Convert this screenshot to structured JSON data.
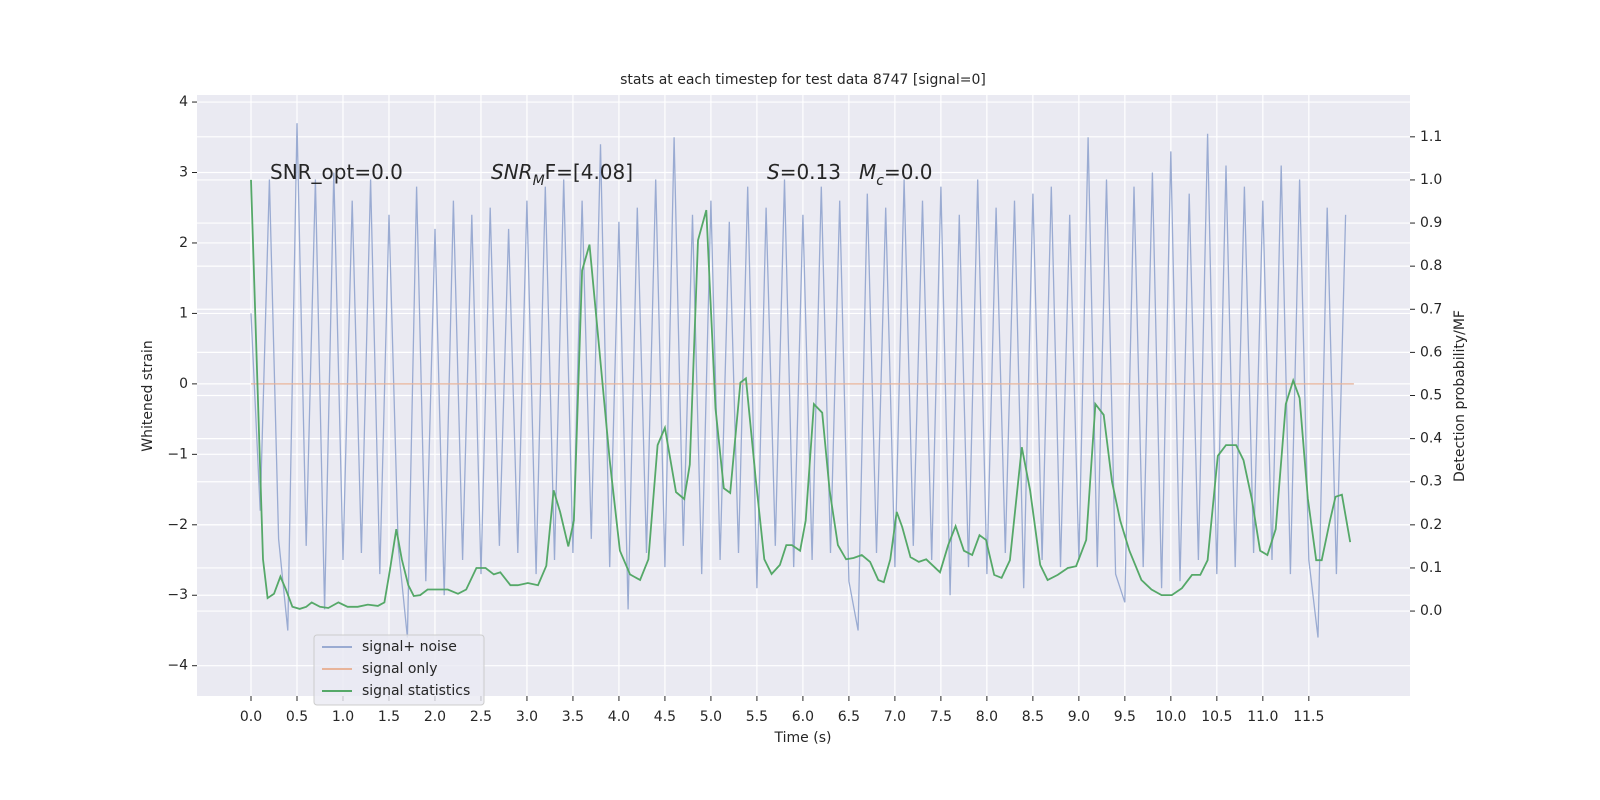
{
  "chart_data": {
    "type": "line",
    "title": "stats at each timestep for test data 8747 [signal=0]",
    "xlabel": "Time (s)",
    "ylabel": "Whitened strain",
    "y2label": "Detection probability/MF",
    "xlim": [
      -0.587,
      12.6
    ],
    "ylim": [
      -4.43,
      4.1
    ],
    "y2lim": [
      -0.197,
      1.197
    ],
    "xticks": [
      {
        "value": 0,
        "label": "0.0"
      },
      {
        "value": 0.5,
        "label": "0.5"
      },
      {
        "value": 1,
        "label": "1.0"
      },
      {
        "value": 1.5,
        "label": "1.5"
      },
      {
        "value": 2,
        "label": "2.0"
      },
      {
        "value": 2.5,
        "label": "2.5"
      },
      {
        "value": 3,
        "label": "3.0"
      },
      {
        "value": 3.5,
        "label": "3.5"
      },
      {
        "value": 4,
        "label": "4.0"
      },
      {
        "value": 4.5,
        "label": "4.5"
      },
      {
        "value": 5,
        "label": "5.0"
      },
      {
        "value": 5.5,
        "label": "5.5"
      },
      {
        "value": 6,
        "label": "6.0"
      },
      {
        "value": 6.5,
        "label": "6.5"
      },
      {
        "value": 7,
        "label": "7.0"
      },
      {
        "value": 7.5,
        "label": "7.5"
      },
      {
        "value": 8,
        "label": "8.0"
      },
      {
        "value": 8.5,
        "label": "8.5"
      },
      {
        "value": 9,
        "label": "9.0"
      },
      {
        "value": 9.5,
        "label": "9.5"
      },
      {
        "value": 10,
        "label": "10.0"
      },
      {
        "value": 10.5,
        "label": "10.5"
      },
      {
        "value": 11,
        "label": "11.0"
      },
      {
        "value": 11.5,
        "label": "11.5"
      }
    ],
    "yticks": [
      {
        "value": -4,
        "label": "−4"
      },
      {
        "value": -3,
        "label": "−3"
      },
      {
        "value": -2,
        "label": "−2"
      },
      {
        "value": -1,
        "label": "−1"
      },
      0,
      1,
      2,
      3,
      4
    ],
    "y2ticks": [
      {
        "value": 0,
        "label": "0.0"
      },
      {
        "value": 0.1,
        "label": "0.1"
      },
      {
        "value": 0.2,
        "label": "0.2"
      },
      {
        "value": 0.3,
        "label": "0.3"
      },
      {
        "value": 0.4,
        "label": "0.4"
      },
      {
        "value": 0.5,
        "label": "0.5"
      },
      {
        "value": 0.6,
        "label": "0.6"
      },
      {
        "value": 0.7,
        "label": "0.7"
      },
      {
        "value": 0.8,
        "label": "0.8"
      },
      {
        "value": 0.9,
        "label": "0.9"
      },
      {
        "value": 1,
        "label": "1.0"
      },
      {
        "value": 1.1,
        "label": "1.1"
      }
    ],
    "grid": true,
    "legend": "lower left",
    "annotations": [
      [
        "SNR_opt=0.0"
      ],
      [
        "SNR",
        "M",
        "F=[4.08]"
      ],
      [
        "S",
        "=0.13"
      ],
      [
        "M",
        "c",
        "=0.0"
      ]
    ],
    "series": [
      {
        "name": "signal+ noise",
        "color": "#9aabd2",
        "x": [
          0,
          0.1,
          0.2,
          0.3,
          0.4,
          0.5,
          0.6,
          0.7,
          0.8,
          0.9,
          1,
          1.1,
          1.2,
          1.3,
          1.4,
          1.5,
          1.6,
          1.7,
          1.8,
          1.9,
          2,
          2.1,
          2.2,
          2.3,
          2.4,
          2.5,
          2.6,
          2.7,
          2.8,
          2.9,
          3,
          3.1,
          3.2,
          3.3,
          3.4,
          3.5,
          3.6,
          3.7,
          3.8,
          3.9,
          4,
          4.1,
          4.2,
          4.3,
          4.4,
          4.5,
          4.6,
          4.7,
          4.8,
          4.9,
          5,
          5.1,
          5.2,
          5.3,
          5.4,
          5.5,
          5.6,
          5.7,
          5.8,
          5.9,
          6,
          6.1,
          6.2,
          6.3,
          6.4,
          6.5,
          6.6,
          6.7,
          6.8,
          6.9,
          7,
          7.1,
          7.2,
          7.3,
          7.4,
          7.5,
          7.6,
          7.7,
          7.8,
          7.9,
          8,
          8.1,
          8.2,
          8.3,
          8.4,
          8.5,
          8.6,
          8.7,
          8.8,
          8.9,
          9,
          9.1,
          9.2,
          9.3,
          9.4,
          9.5,
          9.6,
          9.7,
          9.8,
          9.9,
          10,
          10.1,
          10.2,
          10.3,
          10.4,
          10.5,
          10.6,
          10.7,
          10.8,
          10.9,
          11,
          11.1,
          11.2,
          11.3,
          11.4,
          11.5,
          11.6,
          11.7,
          11.8,
          11.9
        ],
        "values": [
          1.0,
          -1.8,
          2.9,
          -2.2,
          -3.5,
          3.7,
          -2.3,
          2.9,
          -3.2,
          3.0,
          -2.5,
          2.6,
          -2.4,
          2.9,
          -2.7,
          2.4,
          -2.3,
          -3.6,
          2.8,
          -2.8,
          2.2,
          -3.0,
          2.6,
          -2.5,
          2.4,
          -2.7,
          2.5,
          -2.3,
          2.2,
          -2.4,
          2.6,
          -2.7,
          2.8,
          -2.5,
          2.9,
          -2.4,
          2.6,
          -2.2,
          3.4,
          -2.6,
          2.3,
          -3.2,
          2.5,
          -2.4,
          2.9,
          -2.6,
          3.5,
          -2.3,
          2.4,
          -2.7,
          2.6,
          -2.5,
          2.3,
          -2.4,
          2.8,
          -2.9,
          2.5,
          -2.3,
          2.9,
          -2.6,
          2.4,
          -2.5,
          2.8,
          -2.4,
          2.6,
          -2.8,
          -3.5,
          2.7,
          -2.4,
          2.5,
          -2.6,
          2.9,
          -2.3,
          2.6,
          -2.5,
          2.8,
          -3.0,
          2.4,
          -2.6,
          2.9,
          -2.7,
          2.5,
          -2.4,
          2.6,
          -2.9,
          2.7,
          -2.5,
          2.8,
          -2.6,
          2.4,
          -2.5,
          3.5,
          -2.6,
          2.9,
          -2.7,
          -3.1,
          2.8,
          -2.6,
          3.0,
          -2.9,
          3.3,
          -2.8,
          2.7,
          -2.5,
          3.55,
          -2.7,
          3.1,
          -2.6,
          2.8,
          -2.4,
          2.6,
          -2.5,
          3.1,
          -2.7,
          2.9,
          -2.5,
          -3.6,
          2.5,
          -2.7,
          2.4
        ]
      },
      {
        "name": "signal only",
        "color": "#e8b49a",
        "x": [
          0,
          11.99
        ],
        "values": [
          0,
          0
        ]
      },
      {
        "name": "signal statistics",
        "color": "#55a868",
        "axis": "y2",
        "x": [
          0,
          0.13,
          0.18,
          0.25,
          0.32,
          0.38,
          0.45,
          0.53,
          0.6,
          0.66,
          0.75,
          0.84,
          0.95,
          1.05,
          1.16,
          1.27,
          1.38,
          1.45,
          1.51,
          1.58,
          1.64,
          1.71,
          1.77,
          1.84,
          1.92,
          2.03,
          2.14,
          2.25,
          2.34,
          2.45,
          2.55,
          2.64,
          2.71,
          2.82,
          2.9,
          3.01,
          3.12,
          3.21,
          3.29,
          3.36,
          3.45,
          3.51,
          3.6,
          3.68,
          3.79,
          3.9,
          4.01,
          4.12,
          4.23,
          4.32,
          4.42,
          4.5,
          4.62,
          4.71,
          4.77,
          4.86,
          4.95,
          5.05,
          5.14,
          5.21,
          5.32,
          5.38,
          5.49,
          5.58,
          5.66,
          5.75,
          5.82,
          5.88,
          5.97,
          6.03,
          6.12,
          6.21,
          6.29,
          6.38,
          6.47,
          6.55,
          6.64,
          6.73,
          6.82,
          6.88,
          6.95,
          7.02,
          7.08,
          7.17,
          7.26,
          7.34,
          7.42,
          7.49,
          7.58,
          7.66,
          7.75,
          7.84,
          7.92,
          7.99,
          8.08,
          8.16,
          8.25,
          8.38,
          8.47,
          8.58,
          8.66,
          8.77,
          8.88,
          8.97,
          9.08,
          9.18,
          9.27,
          9.36,
          9.45,
          9.55,
          9.68,
          9.79,
          9.9,
          10.01,
          10.12,
          10.23,
          10.32,
          10.4,
          10.51,
          10.6,
          10.71,
          10.79,
          10.88,
          10.97,
          11.05,
          11.14,
          11.25,
          11.33,
          11.4,
          11.49,
          11.58,
          11.64,
          11.73,
          11.79,
          11.86,
          11.95
        ],
        "values": [
          1.0,
          0.12,
          0.03,
          0.04,
          0.08,
          0.05,
          0.01,
          0.005,
          0.01,
          0.02,
          0.01,
          0.007,
          0.02,
          0.01,
          0.01,
          0.015,
          0.012,
          0.02,
          0.095,
          0.19,
          0.12,
          0.06,
          0.035,
          0.037,
          0.05,
          0.05,
          0.05,
          0.04,
          0.05,
          0.1,
          0.1,
          0.085,
          0.09,
          0.06,
          0.06,
          0.065,
          0.06,
          0.105,
          0.28,
          0.23,
          0.15,
          0.21,
          0.79,
          0.85,
          0.6,
          0.35,
          0.14,
          0.085,
          0.072,
          0.12,
          0.385,
          0.425,
          0.276,
          0.26,
          0.34,
          0.86,
          0.93,
          0.47,
          0.285,
          0.274,
          0.53,
          0.54,
          0.3,
          0.12,
          0.086,
          0.107,
          0.153,
          0.153,
          0.14,
          0.21,
          0.48,
          0.46,
          0.28,
          0.153,
          0.12,
          0.123,
          0.13,
          0.114,
          0.072,
          0.067,
          0.12,
          0.23,
          0.195,
          0.125,
          0.114,
          0.12,
          0.104,
          0.09,
          0.153,
          0.197,
          0.14,
          0.13,
          0.176,
          0.165,
          0.084,
          0.077,
          0.118,
          0.38,
          0.28,
          0.107,
          0.072,
          0.084,
          0.1,
          0.104,
          0.165,
          0.48,
          0.455,
          0.3,
          0.21,
          0.14,
          0.072,
          0.05,
          0.037,
          0.037,
          0.053,
          0.084,
          0.084,
          0.118,
          0.36,
          0.385,
          0.385,
          0.35,
          0.26,
          0.14,
          0.13,
          0.19,
          0.48,
          0.535,
          0.494,
          0.26,
          0.118,
          0.118,
          0.21,
          0.265,
          0.27,
          0.16
        ]
      }
    ]
  }
}
